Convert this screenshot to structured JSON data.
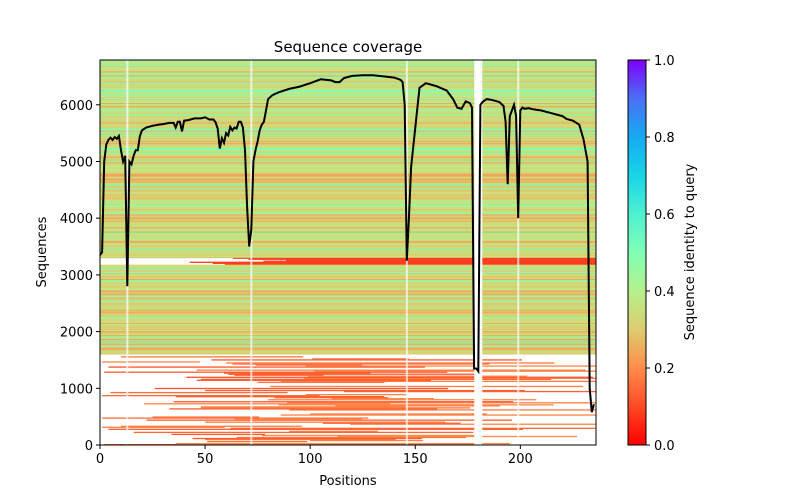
{
  "chart_data": {
    "type": "heatmap",
    "title": "Sequence coverage",
    "xlabel": "Positions",
    "ylabel": "Sequences",
    "xlim": [
      0,
      236
    ],
    "ylim": [
      0,
      6790
    ],
    "xticks": [
      0,
      50,
      100,
      150,
      200
    ],
    "xtick_labels": [
      "0",
      "50",
      "100",
      "150",
      "200"
    ],
    "yticks": [
      0,
      1000,
      2000,
      3000,
      4000,
      5000,
      6000
    ],
    "ytick_labels": [
      "0",
      "1000",
      "2000",
      "3000",
      "4000",
      "5000",
      "6000"
    ],
    "grid": false,
    "colorbar": {
      "label": "Sequence identity to query",
      "range": [
        0,
        1
      ],
      "ticks": [
        0.0,
        0.2,
        0.4,
        0.6,
        0.8,
        1.0
      ],
      "tick_labels": [
        "0.0",
        "0.2",
        "0.4",
        "0.6",
        "0.8",
        "1.0"
      ],
      "colormap": "rainbow_r"
    },
    "heatmap_bands": [
      {
        "seq_from": 3300,
        "seq_to": 6790,
        "identity": 0.32,
        "note": "mostly 0.28-0.45 with bright 0.5 stripes"
      },
      {
        "seq_from": 3180,
        "seq_to": 3300,
        "identity": 0.1,
        "note": "low identity, partially covered"
      },
      {
        "seq_from": 1600,
        "seq_to": 3180,
        "identity": 0.3
      },
      {
        "seq_from": 0,
        "seq_to": 1600,
        "identity": 0.16,
        "note": "sparse coverage, low identity"
      }
    ],
    "gap_columns": [
      13,
      72,
      146,
      180,
      199
    ],
    "series": [
      {
        "name": "coverage",
        "color": "#000000",
        "x": [
          0,
          1,
          2,
          3,
          4,
          5,
          6,
          7,
          8,
          9,
          10,
          11,
          12,
          13,
          14,
          15,
          16,
          17,
          18,
          19,
          20,
          22,
          25,
          28,
          30,
          33,
          35,
          36,
          37,
          38,
          39,
          40,
          42,
          45,
          48,
          50,
          52,
          54,
          55,
          56,
          57,
          58,
          59,
          60,
          61,
          62,
          63,
          64,
          65,
          66,
          67,
          68,
          69,
          70,
          71,
          72,
          73,
          74,
          75,
          76,
          77,
          78,
          80,
          82,
          85,
          90,
          95,
          100,
          105,
          110,
          112,
          114,
          116,
          118,
          120,
          125,
          130,
          135,
          140,
          143,
          144,
          145,
          146,
          147,
          148,
          150,
          152,
          155,
          160,
          165,
          168,
          170,
          172,
          174,
          176,
          177,
          178,
          179,
          180,
          181,
          182,
          184,
          186,
          188,
          190,
          192,
          193,
          194,
          195,
          196,
          197,
          198,
          199,
          200,
          201,
          202,
          204,
          206,
          210,
          215,
          220,
          222,
          225,
          228,
          230,
          232,
          233,
          234,
          235
        ],
        "y": [
          3350,
          3400,
          5000,
          5300,
          5380,
          5420,
          5380,
          5430,
          5400,
          5450,
          5200,
          5000,
          5100,
          2800,
          5000,
          4950,
          5100,
          5200,
          5200,
          5450,
          5550,
          5600,
          5630,
          5650,
          5660,
          5680,
          5680,
          5600,
          5700,
          5700,
          5530,
          5720,
          5730,
          5760,
          5760,
          5780,
          5740,
          5740,
          5690,
          5580,
          5230,
          5410,
          5330,
          5500,
          5460,
          5610,
          5550,
          5600,
          5580,
          5700,
          5700,
          5600,
          5200,
          4200,
          3500,
          3800,
          5000,
          5200,
          5350,
          5550,
          5650,
          5700,
          6100,
          6170,
          6220,
          6280,
          6320,
          6380,
          6450,
          6430,
          6400,
          6400,
          6470,
          6490,
          6510,
          6520,
          6520,
          6500,
          6480,
          6440,
          6400,
          6000,
          3250,
          4000,
          4900,
          5600,
          6300,
          6380,
          6330,
          6250,
          6100,
          5950,
          5930,
          6060,
          6030,
          5950,
          1350,
          1350,
          1300,
          6000,
          6050,
          6100,
          6090,
          6070,
          6050,
          5980,
          5700,
          4600,
          5800,
          5900,
          6000,
          5800,
          4000,
          5900,
          5950,
          5930,
          5940,
          5920,
          5900,
          5850,
          5800,
          5750,
          5720,
          5650,
          5400,
          5000,
          1000,
          580,
          720
        ]
      }
    ]
  }
}
